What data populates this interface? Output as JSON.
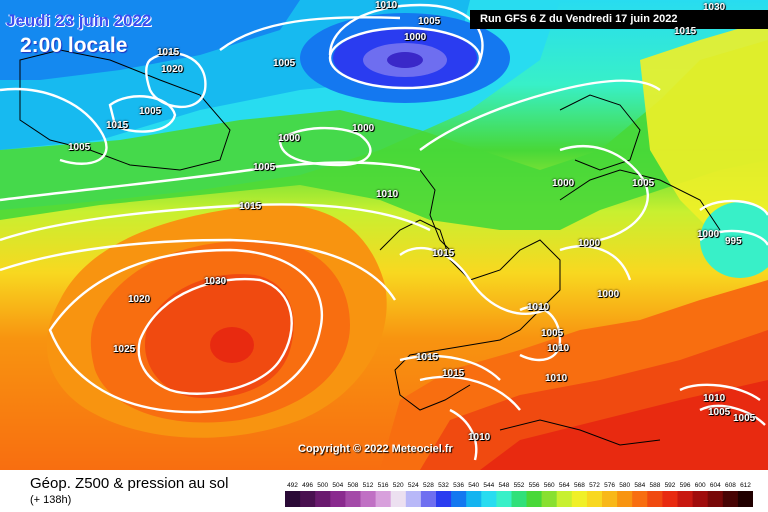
{
  "header": {
    "date": "Jeudi 23 juin 2022",
    "time": "2:00 locale",
    "run": "Run GFS 6 Z du Vendredi 17 juin 2022"
  },
  "copyright": "Copyright © 2022 Meteociel.fr",
  "footer": {
    "title": "Géop. Z500 & pression au sol",
    "step": "(+ 138h)"
  },
  "isobar_labels": [
    "1010",
    "1030",
    "1005",
    "1000",
    "1015",
    "1020",
    "1005",
    "1015",
    "1005",
    "1000",
    "1000",
    "1005",
    "1010",
    "1015",
    "1000",
    "1005",
    "1000",
    "995",
    "1000",
    "1015",
    "1020",
    "1030",
    "1025",
    "1010",
    "1005",
    "1010",
    "1015",
    "1010",
    "1010",
    "1015",
    "1010",
    "1005",
    "1005"
  ],
  "legend": {
    "ticks": [
      "492",
      "496",
      "500",
      "504",
      "508",
      "512",
      "516",
      "520",
      "524",
      "528",
      "532",
      "536",
      "540",
      "544",
      "548",
      "552",
      "556",
      "560",
      "564",
      "568",
      "572",
      "576",
      "580",
      "584",
      "588",
      "592",
      "596",
      "600",
      "604",
      "608",
      "612"
    ],
    "colors": [
      "#2a0a36",
      "#4a1050",
      "#6a1a6e",
      "#8a2a8e",
      "#a44aa8",
      "#c070c4",
      "#d8a0dc",
      "#ece0f0",
      "#b8b8f8",
      "#6e6ef0",
      "#2a3cf0",
      "#1478f0",
      "#14b4f0",
      "#28dcf0",
      "#38f0c8",
      "#30e07a",
      "#48d838",
      "#88e030",
      "#c8f030",
      "#f0f028",
      "#f8d820",
      "#f8b818",
      "#f89410",
      "#f86e10",
      "#f04a10",
      "#e82a10",
      "#c81810",
      "#a00c0c",
      "#780808",
      "#480404",
      "#200000"
    ]
  }
}
